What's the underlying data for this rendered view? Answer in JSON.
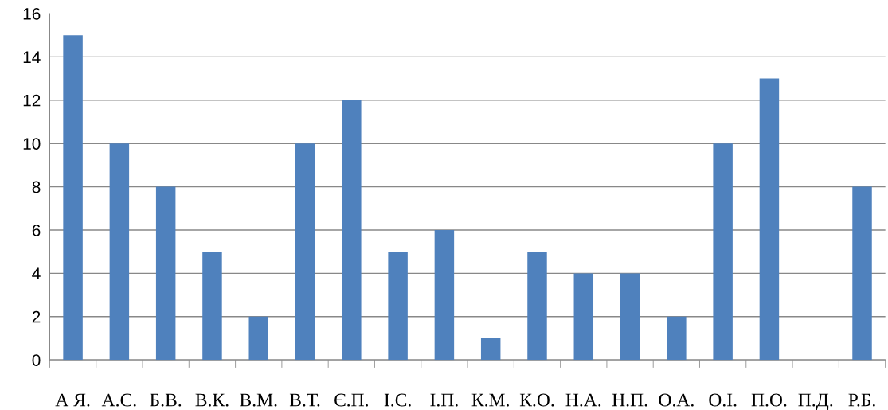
{
  "chart_data": {
    "type": "bar",
    "categories": [
      "А Я.",
      "А.С.",
      "Б.В.",
      "В.К.",
      "В.М.",
      "В.Т.",
      "Є.П.",
      "І.С.",
      "І.П.",
      "К.М.",
      "К.О.",
      "Н.А.",
      "Н.П.",
      "О.А.",
      "О.І.",
      "П.О.",
      "П.Д.",
      "Р.Б."
    ],
    "values": [
      15,
      10,
      8,
      5,
      2,
      10,
      12,
      5,
      6,
      1,
      5,
      4,
      4,
      2,
      10,
      13,
      0,
      8
    ],
    "color": "#4f81bd",
    "ylim": [
      0,
      16
    ],
    "yticks": [
      0,
      2,
      4,
      6,
      8,
      10,
      12,
      14,
      16
    ],
    "grid": "y",
    "legend": false
  }
}
